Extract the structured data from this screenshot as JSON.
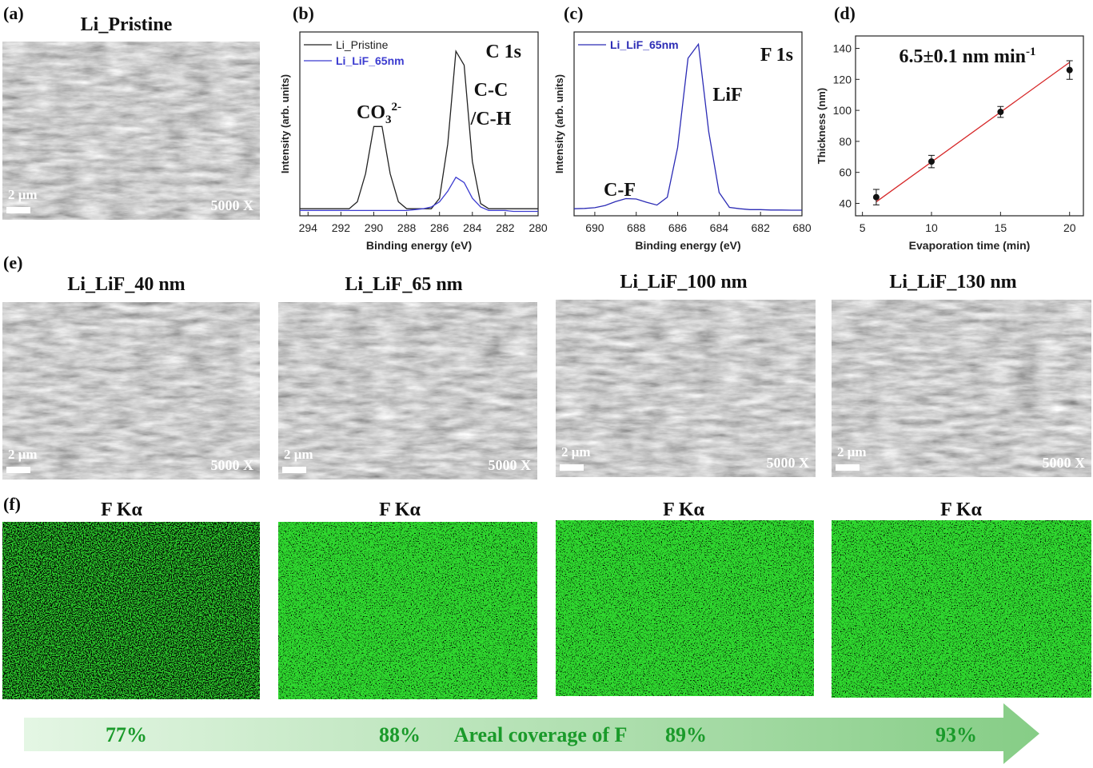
{
  "labels": [
    "(a)",
    "(b)",
    "(c)",
    "(d)",
    "(e)",
    "(f)"
  ],
  "sem": [
    {
      "title": "Li_Pristine",
      "scale_bar": "2 μm",
      "magnification": "5000 X"
    },
    {
      "title": "Li_LiF_40 nm",
      "scale_bar": "2 μm",
      "magnification": "5000 X"
    },
    {
      "title": "Li_LiF_65 nm",
      "scale_bar": "2 μm",
      "magnification": "5000 X"
    },
    {
      "title": "Li_LiF_100 nm",
      "scale_bar": "2 μm",
      "magnification": "5000 X"
    },
    {
      "title": "Li_LiF_130 nm",
      "scale_bar": "2 μm",
      "magnification": "5000 X"
    }
  ],
  "eds": [
    {
      "title": "F Kα"
    },
    {
      "title": "F Kα"
    },
    {
      "title": "F Kα"
    },
    {
      "title": "F Kα"
    }
  ],
  "coverage": {
    "label": "Areal coverage of F",
    "values": [
      "77%",
      "88%",
      "89%",
      "93%"
    ]
  },
  "chart_data": [
    {
      "type": "line",
      "title": "C 1s",
      "xlabel": "Binding energy (eV)",
      "ylabel": "Intensity (arb. units)",
      "x": [
        294.5,
        294,
        293.5,
        293,
        292.5,
        292,
        291.5,
        291,
        290.5,
        290,
        289.5,
        289,
        288.5,
        288,
        287.5,
        287,
        286.5,
        286,
        285.5,
        285,
        284.5,
        284,
        283.5,
        283,
        282.5,
        282,
        281.5,
        281,
        280.5,
        280
      ],
      "series": [
        {
          "name": "Li_Pristine",
          "color": "#222222",
          "values": [
            0.04,
            0.04,
            0.04,
            0.04,
            0.04,
            0.04,
            0.04,
            0.08,
            0.24,
            0.51,
            0.51,
            0.24,
            0.08,
            0.04,
            0.04,
            0.04,
            0.04,
            0.1,
            0.41,
            0.94,
            0.86,
            0.31,
            0.07,
            0.04,
            0.04,
            0.04,
            0.04,
            0.04,
            0.04,
            0.04
          ]
        },
        {
          "name": "Li_LiF_65nm",
          "color": "#3b3bd0",
          "values": [
            0.03,
            0.03,
            0.03,
            0.03,
            0.03,
            0.03,
            0.03,
            0.03,
            0.03,
            0.03,
            0.03,
            0.03,
            0.03,
            0.03,
            0.035,
            0.04,
            0.05,
            0.08,
            0.14,
            0.22,
            0.19,
            0.1,
            0.05,
            0.03,
            0.03,
            0.03,
            0.025,
            0.025,
            0.025,
            0.025
          ]
        }
      ],
      "xlim": [
        294.5,
        280
      ],
      "xticks": [
        294,
        292,
        290,
        288,
        286,
        284,
        282,
        280
      ],
      "ylim": [
        0,
        1.05
      ],
      "annotations": [
        {
          "text": "CO",
          "sub": "3",
          "sup": "2-"
        },
        {
          "text": "C-C"
        },
        {
          "text": "/C-H"
        }
      ]
    },
    {
      "type": "line",
      "title": "F 1s",
      "xlabel": "Binding energy (eV)",
      "ylabel": "Intensity (arb. units)",
      "x": [
        691,
        690.5,
        690,
        689.5,
        689,
        688.5,
        688,
        687.5,
        687,
        686.5,
        686,
        685.5,
        685,
        684.5,
        684,
        683.5,
        683,
        682.5,
        682,
        681.5,
        681,
        680.5,
        680
      ],
      "series": [
        {
          "name": "Li_LiF_65nm",
          "color": "#2b2bb5",
          "values": [
            0.04,
            0.042,
            0.046,
            0.059,
            0.081,
            0.098,
            0.096,
            0.077,
            0.061,
            0.106,
            0.39,
            0.9,
            0.98,
            0.48,
            0.133,
            0.048,
            0.04,
            0.035,
            0.035,
            0.033,
            0.033,
            0.032,
            0.032
          ]
        }
      ],
      "xlim": [
        691,
        680
      ],
      "xticks": [
        690,
        688,
        686,
        684,
        682,
        680
      ],
      "ylim": [
        0,
        1.05
      ],
      "annotations": [
        {
          "text": "LiF"
        },
        {
          "text": "C-F"
        }
      ]
    },
    {
      "type": "scatter",
      "title": "6.5±0.1 nm min",
      "title_sup": "-1",
      "xlabel": "Evaporation time (min)",
      "ylabel": "Thickness (nm)",
      "x": [
        6,
        10,
        15,
        20
      ],
      "values": [
        44,
        67,
        99,
        126
      ],
      "errors": [
        5,
        4,
        3.5,
        6
      ],
      "color": "#111111",
      "fit": {
        "x": [
          6,
          20
        ],
        "values": [
          41,
          131
        ],
        "color": "#d62728"
      },
      "xlim": [
        4.5,
        21
      ],
      "xticks": [
        5,
        10,
        15,
        20
      ],
      "ylim": [
        32,
        148
      ],
      "yticks": [
        40,
        60,
        80,
        100,
        120,
        140
      ]
    }
  ]
}
